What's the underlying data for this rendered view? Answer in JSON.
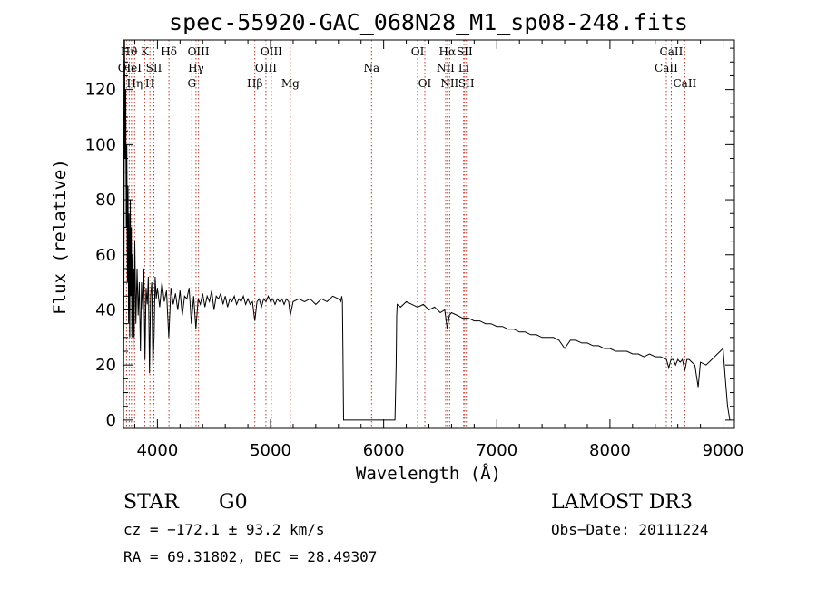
{
  "chart_data": {
    "type": "line",
    "title": "spec-55920-GAC_068N28_M1_sp08-248.fits",
    "xlabel": "Wavelength (Å)",
    "ylabel": "Flux (relative)",
    "xlim": [
      3700,
      9100
    ],
    "ylim": [
      -3,
      138
    ],
    "xticks": [
      4000,
      5000,
      6000,
      7000,
      8000,
      9000
    ],
    "yticks": [
      0,
      20,
      40,
      60,
      80,
      100,
      120
    ],
    "grid": false,
    "spectrum_points": [
      [
        3700,
        3
      ],
      [
        3705,
        55
      ],
      [
        3710,
        140
      ],
      [
        3715,
        95
      ],
      [
        3720,
        120
      ],
      [
        3725,
        70
      ],
      [
        3730,
        100
      ],
      [
        3735,
        50
      ],
      [
        3740,
        85
      ],
      [
        3745,
        35
      ],
      [
        3750,
        75
      ],
      [
        3755,
        30
      ],
      [
        3760,
        80
      ],
      [
        3765,
        45
      ],
      [
        3770,
        70
      ],
      [
        3775,
        30
      ],
      [
        3780,
        60
      ],
      [
        3785,
        25
      ],
      [
        3790,
        55
      ],
      [
        3795,
        30
      ],
      [
        3800,
        65
      ],
      [
        3810,
        35
      ],
      [
        3820,
        55
      ],
      [
        3830,
        38
      ],
      [
        3840,
        50
      ],
      [
        3850,
        25
      ],
      [
        3860,
        50
      ],
      [
        3870,
        40
      ],
      [
        3880,
        55
      ],
      [
        3890,
        22
      ],
      [
        3900,
        48
      ],
      [
        3910,
        42
      ],
      [
        3920,
        52
      ],
      [
        3930,
        17
      ],
      [
        3940,
        45
      ],
      [
        3950,
        50
      ],
      [
        3960,
        20
      ],
      [
        3970,
        30
      ],
      [
        3980,
        52
      ],
      [
        3990,
        44
      ],
      [
        4000,
        48
      ],
      [
        4020,
        41
      ],
      [
        4040,
        50
      ],
      [
        4060,
        43
      ],
      [
        4080,
        47
      ],
      [
        4100,
        30
      ],
      [
        4120,
        48
      ],
      [
        4140,
        42
      ],
      [
        4160,
        46
      ],
      [
        4180,
        40
      ],
      [
        4200,
        47
      ],
      [
        4220,
        38
      ],
      [
        4240,
        45
      ],
      [
        4260,
        44
      ],
      [
        4280,
        48
      ],
      [
        4300,
        35
      ],
      [
        4320,
        45
      ],
      [
        4340,
        33
      ],
      [
        4360,
        44
      ],
      [
        4380,
        42
      ],
      [
        4400,
        46
      ],
      [
        4420,
        41
      ],
      [
        4440,
        45
      ],
      [
        4460,
        43
      ],
      [
        4480,
        47
      ],
      [
        4500,
        40
      ],
      [
        4520,
        45
      ],
      [
        4540,
        44
      ],
      [
        4560,
        46
      ],
      [
        4580,
        42
      ],
      [
        4600,
        45
      ],
      [
        4620,
        41
      ],
      [
        4640,
        44
      ],
      [
        4660,
        43
      ],
      [
        4680,
        45
      ],
      [
        4700,
        42
      ],
      [
        4720,
        44
      ],
      [
        4740,
        43
      ],
      [
        4760,
        45
      ],
      [
        4780,
        42
      ],
      [
        4800,
        44
      ],
      [
        4820,
        42
      ],
      [
        4840,
        43
      ],
      [
        4861,
        36
      ],
      [
        4880,
        43
      ],
      [
        4900,
        44
      ],
      [
        4920,
        41
      ],
      [
        4940,
        44
      ],
      [
        4960,
        43
      ],
      [
        4980,
        45
      ],
      [
        5000,
        43
      ],
      [
        5020,
        44
      ],
      [
        5040,
        42
      ],
      [
        5060,
        44
      ],
      [
        5080,
        43
      ],
      [
        5100,
        44
      ],
      [
        5120,
        42
      ],
      [
        5140,
        44
      ],
      [
        5160,
        43
      ],
      [
        5175,
        38
      ],
      [
        5200,
        43
      ],
      [
        5250,
        44
      ],
      [
        5300,
        43
      ],
      [
        5350,
        44
      ],
      [
        5400,
        42
      ],
      [
        5450,
        44
      ],
      [
        5500,
        43
      ],
      [
        5550,
        45
      ],
      [
        5600,
        44
      ],
      [
        5620,
        43
      ],
      [
        5630,
        45
      ],
      [
        5635,
        43
      ],
      [
        5640,
        25
      ],
      [
        5643,
        10
      ],
      [
        5646,
        0
      ],
      [
        5700,
        0
      ],
      [
        6000,
        0
      ],
      [
        6100,
        0
      ],
      [
        6110,
        20
      ],
      [
        6115,
        38
      ],
      [
        6120,
        42
      ],
      [
        6150,
        41
      ],
      [
        6200,
        43
      ],
      [
        6250,
        42
      ],
      [
        6300,
        41
      ],
      [
        6350,
        42
      ],
      [
        6400,
        40
      ],
      [
        6450,
        41
      ],
      [
        6500,
        39
      ],
      [
        6540,
        40
      ],
      [
        6563,
        33
      ],
      [
        6580,
        38
      ],
      [
        6600,
        39
      ],
      [
        6650,
        38
      ],
      [
        6700,
        37
      ],
      [
        6750,
        37
      ],
      [
        6800,
        36
      ],
      [
        6850,
        36
      ],
      [
        6900,
        35
      ],
      [
        6950,
        35
      ],
      [
        7000,
        34
      ],
      [
        7050,
        34
      ],
      [
        7100,
        33
      ],
      [
        7150,
        33
      ],
      [
        7200,
        32
      ],
      [
        7250,
        32
      ],
      [
        7300,
        31
      ],
      [
        7350,
        31
      ],
      [
        7400,
        30
      ],
      [
        7450,
        30
      ],
      [
        7500,
        30
      ],
      [
        7550,
        29
      ],
      [
        7600,
        26
      ],
      [
        7650,
        29
      ],
      [
        7700,
        29
      ],
      [
        7750,
        28
      ],
      [
        7800,
        28
      ],
      [
        7850,
        27
      ],
      [
        7900,
        27
      ],
      [
        7950,
        26
      ],
      [
        8000,
        26
      ],
      [
        8050,
        25
      ],
      [
        8100,
        25
      ],
      [
        8150,
        25
      ],
      [
        8200,
        24
      ],
      [
        8250,
        24
      ],
      [
        8300,
        23
      ],
      [
        8350,
        24
      ],
      [
        8400,
        23
      ],
      [
        8450,
        23
      ],
      [
        8500,
        22
      ],
      [
        8520,
        19
      ],
      [
        8540,
        22
      ],
      [
        8560,
        22
      ],
      [
        8580,
        20
      ],
      [
        8600,
        22
      ],
      [
        8620,
        21
      ],
      [
        8640,
        22
      ],
      [
        8662,
        18
      ],
      [
        8680,
        22
      ],
      [
        8700,
        22
      ],
      [
        8750,
        20
      ],
      [
        8780,
        12
      ],
      [
        8800,
        21
      ],
      [
        8850,
        20
      ],
      [
        8900,
        22
      ],
      [
        8950,
        24
      ],
      [
        9000,
        26
      ],
      [
        9020,
        15
      ],
      [
        9040,
        5
      ],
      [
        9060,
        0
      ]
    ],
    "line_markers": [
      {
        "wl": 3727,
        "label": "OII",
        "row": 1
      },
      {
        "wl": 3751,
        "label": "Hϑ",
        "row": 0
      },
      {
        "wl": 3771,
        "label": "HeI",
        "row": 1
      },
      {
        "wl": 3799,
        "label": "Hη",
        "row": 2
      },
      {
        "wl": 3889,
        "label": "K",
        "row": 0
      },
      {
        "wl": 3934,
        "label": "H",
        "row": 2
      },
      {
        "wl": 3969,
        "label": "SII",
        "row": 1
      },
      {
        "wl": 4102,
        "label": "Hδ",
        "row": 0
      },
      {
        "wl": 4304,
        "label": "G",
        "row": 2
      },
      {
        "wl": 4341,
        "label": "Hγ",
        "row": 1
      },
      {
        "wl": 4363,
        "label": "OIII",
        "row": 0
      },
      {
        "wl": 4861,
        "label": "Hβ",
        "row": 2
      },
      {
        "wl": 4959,
        "label": "OIII",
        "row": 1
      },
      {
        "wl": 5007,
        "label": "OIII",
        "row": 0
      },
      {
        "wl": 5175,
        "label": "Mg",
        "row": 2
      },
      {
        "wl": 5893,
        "label": "Na",
        "row": 1
      },
      {
        "wl": 6300,
        "label": "OI",
        "row": 0
      },
      {
        "wl": 6364,
        "label": "OI",
        "row": 2
      },
      {
        "wl": 6548,
        "label": "NII",
        "row": 1
      },
      {
        "wl": 6563,
        "label": "Hα",
        "row": 0
      },
      {
        "wl": 6583,
        "label": "NII",
        "row": 2
      },
      {
        "wl": 6707,
        "label": "Li",
        "row": 1
      },
      {
        "wl": 6716,
        "label": "SII",
        "row": 0
      },
      {
        "wl": 6731,
        "label": "SII",
        "row": 2
      },
      {
        "wl": 8498,
        "label": "CaII",
        "row": 1
      },
      {
        "wl": 8542,
        "label": "CaII",
        "row": 0
      },
      {
        "wl": 8662,
        "label": "CaII",
        "row": 2
      }
    ]
  },
  "info": {
    "object_class": "STAR",
    "subclass": "G0",
    "survey": "LAMOST DR3",
    "cz": "cz = −172.1 ± 93.2 km/s",
    "obs_date": "Obs−Date: 20111224",
    "coords": "RA =  69.31802, DEC =  28.49307"
  }
}
